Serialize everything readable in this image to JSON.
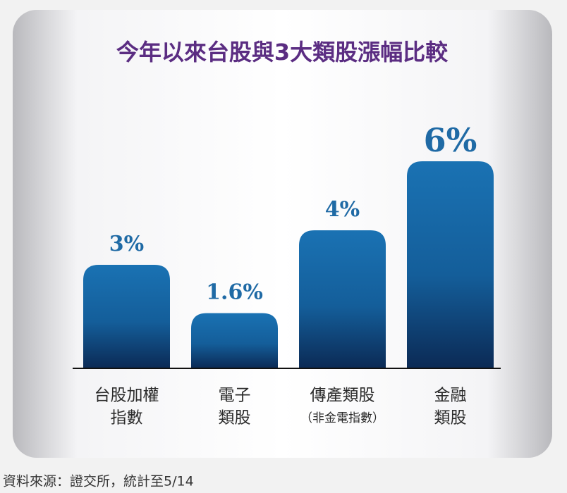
{
  "chart_data": {
    "type": "bar",
    "title": "今年以來台股與3大類股漲幅比較",
    "categories": [
      [
        "台股加權",
        "指數"
      ],
      [
        "電子",
        "類股"
      ],
      [
        "傳產類股",
        "（非金電指數）"
      ],
      [
        "金融",
        "類股"
      ]
    ],
    "values": [
      3,
      1.6,
      4,
      6
    ],
    "value_labels": [
      "3%",
      "1.6%",
      "4%",
      "6%"
    ],
    "color": "#1467a6",
    "source": "資料來源：證交所，統計至5/14"
  }
}
